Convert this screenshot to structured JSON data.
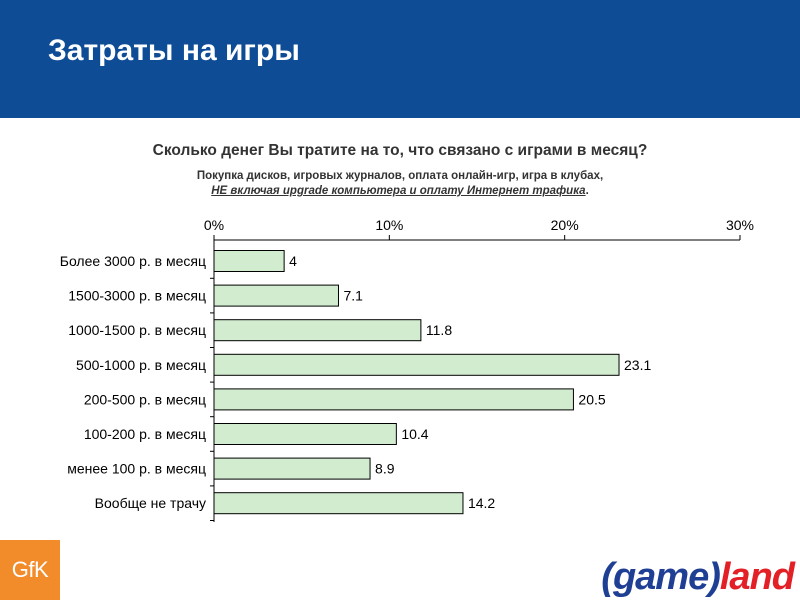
{
  "header": {
    "title": "Затраты на игры"
  },
  "question": "Сколько денег Вы тратите на то, что связано с играми в месяц?",
  "subtitle_line1": "Покупка дисков, игровых журналов, оплата онлайн-игр, игра в клубах,",
  "subtitle_line2_emphasis": "НЕ включая upgrade компьютера и оплату Интернет трафика",
  "subtitle_line2_end": ".",
  "logos": {
    "gfk": "GfK",
    "gameland_part1": "(game)",
    "gameland_part2": "land"
  },
  "colors": {
    "header_bg": "#0f4c96",
    "bar_fill": "#d2ecd0",
    "bar_stroke": "#000000",
    "gfk_orange": "#f28b2a",
    "gameland_blue": "#1f3f95",
    "gameland_red": "#e32026"
  },
  "chart_data": {
    "type": "bar",
    "orientation": "horizontal",
    "categories": [
      "Более 3000 р. в месяц",
      "1500-3000 р. в месяц",
      "1000-1500 р. в месяц",
      "500-1000 р. в месяц",
      "200-500 р. в месяц",
      "100-200 р. в месяц",
      "менее 100 р. в месяц",
      "Вообще не трачу"
    ],
    "values": [
      4,
      7.1,
      11.8,
      23.1,
      20.5,
      10.4,
      8.9,
      14.2
    ],
    "data_labels": [
      "4",
      "7.1",
      "11.8",
      "23.1",
      "20.5",
      "10.4",
      "8.9",
      "14.2"
    ],
    "xlim": [
      0,
      30
    ],
    "xticks": [
      0,
      10,
      20,
      30
    ],
    "xtick_labels": [
      "0%",
      "10%",
      "20%",
      "30%"
    ],
    "axis_position": "top",
    "grid": false,
    "legend": "none"
  }
}
